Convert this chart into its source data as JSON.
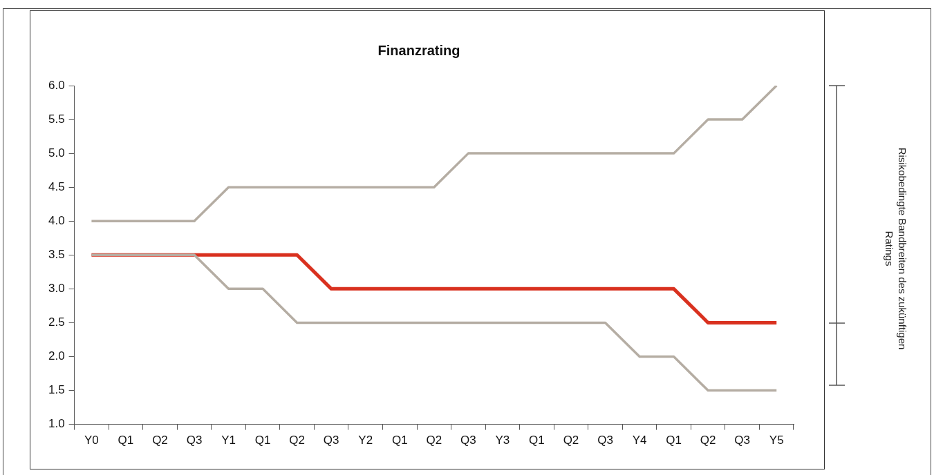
{
  "chart_data": {
    "type": "line",
    "title": "Finanzrating",
    "categories": [
      "Y0",
      "Q1",
      "Q2",
      "Q3",
      "Y1",
      "Q1",
      "Q2",
      "Q3",
      "Y2",
      "Q1",
      "Q2",
      "Q3",
      "Y3",
      "Q1",
      "Q2",
      "Q3",
      "Y4",
      "Q1",
      "Q2",
      "Q3",
      "Y5"
    ],
    "series": [
      {
        "color": "#b5ada3",
        "values": [
          4.0,
          4.0,
          4.0,
          4.0,
          4.5,
          4.5,
          4.5,
          4.5,
          4.5,
          4.5,
          4.5,
          5.0,
          5.0,
          5.0,
          5.0,
          5.0,
          5.0,
          5.0,
          5.5,
          5.5,
          6.0
        ]
      },
      {
        "color": "#b5ada3",
        "values": [
          3.5,
          3.5,
          3.5,
          3.5,
          3.0,
          3.0,
          2.5,
          2.5,
          2.5,
          2.5,
          2.5,
          2.5,
          2.5,
          2.5,
          2.5,
          2.5,
          2.0,
          2.0,
          1.5,
          1.5,
          1.5
        ]
      },
      {
        "color": "#d9311f",
        "values": [
          3.5,
          3.5,
          3.5,
          3.5,
          3.5,
          3.5,
          3.5,
          3.0,
          3.0,
          3.0,
          3.0,
          3.0,
          3.0,
          3.0,
          3.0,
          3.0,
          3.0,
          3.0,
          2.5,
          2.5,
          2.5
        ]
      }
    ],
    "ylim": [
      1.0,
      6.0
    ],
    "yticks": [
      {
        "value": 1,
        "label": "1.0"
      },
      {
        "value": 1.5,
        "label": "1.5"
      },
      {
        "value": 2,
        "label": "2.0"
      },
      {
        "value": 2.5,
        "label": "2.5"
      },
      {
        "value": 3,
        "label": "3.0"
      },
      {
        "value": 3.5,
        "label": "3.5"
      },
      {
        "value": 4,
        "label": "4.0"
      },
      {
        "value": 4.5,
        "label": "4.5"
      },
      {
        "value": 5,
        "label": "5.0"
      },
      {
        "value": 5.5,
        "label": "5.5"
      },
      {
        "value": 6,
        "label": "6.0"
      }
    ],
    "grid": false,
    "legend": false,
    "marker": "none",
    "line_style": "solid",
    "annotations": [
      "Risikobedingte Bandbreiten des zukünftigen Ratings"
    ]
  }
}
